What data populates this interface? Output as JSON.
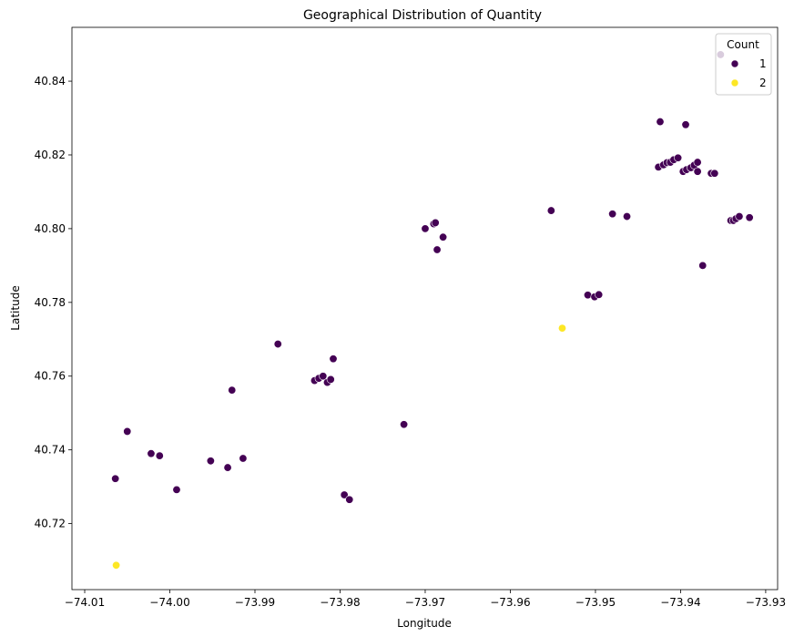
{
  "chart_data": {
    "type": "scatter",
    "title": "Geographical Distribution of Quantity",
    "xlabel": "Longitude",
    "ylabel": "Latitude",
    "xlim": [
      -74.0115,
      -73.9286
    ],
    "ylim": [
      40.7021,
      40.8546
    ],
    "x_ticks": [
      -74.01,
      -74.0,
      -73.99,
      -73.98,
      -73.97,
      -73.96,
      -73.95,
      -73.94,
      -73.93
    ],
    "x_tick_labels": [
      "−74.01",
      "−74.00",
      "−73.99",
      "−73.98",
      "−73.97",
      "−73.96",
      "−73.95",
      "−73.94",
      "−73.93"
    ],
    "y_ticks": [
      40.72,
      40.74,
      40.76,
      40.78,
      40.8,
      40.82,
      40.84
    ],
    "y_tick_labels": [
      "40.72",
      "40.74",
      "40.76",
      "40.78",
      "40.80",
      "40.82",
      "40.84"
    ],
    "grid": false,
    "legend": {
      "title": "Count",
      "placement": "top-right",
      "entries": [
        {
          "label": "1",
          "color": "#440154"
        },
        {
          "label": "2",
          "color": "#fde725"
        }
      ]
    },
    "series": [
      {
        "name": "1",
        "color": "#440154",
        "points": [
          [
            -74.0064,
            40.7322
          ],
          [
            -74.005,
            40.745
          ],
          [
            -74.0022,
            40.739
          ],
          [
            -74.0012,
            40.7384
          ],
          [
            -73.9992,
            40.7292
          ],
          [
            -73.9952,
            40.737
          ],
          [
            -73.9932,
            40.7352
          ],
          [
            -73.9927,
            40.7562
          ],
          [
            -73.9914,
            40.7377
          ],
          [
            -73.9873,
            40.7687
          ],
          [
            -73.983,
            40.7588
          ],
          [
            -73.9825,
            40.7594
          ],
          [
            -73.982,
            40.76
          ],
          [
            -73.9815,
            40.7583
          ],
          [
            -73.9811,
            40.7591
          ],
          [
            -73.9808,
            40.7647
          ],
          [
            -73.9795,
            40.7278
          ],
          [
            -73.9789,
            40.7265
          ],
          [
            -73.9725,
            40.7469
          ],
          [
            -73.97,
            40.8
          ],
          [
            -73.969,
            40.8013
          ],
          [
            -73.9688,
            40.8016
          ],
          [
            -73.9686,
            40.7943
          ],
          [
            -73.9679,
            40.7977
          ],
          [
            -73.9552,
            40.8049
          ],
          [
            -73.9509,
            40.782
          ],
          [
            -73.9501,
            40.7815
          ],
          [
            -73.9496,
            40.7821
          ],
          [
            -73.948,
            40.804
          ],
          [
            -73.9463,
            40.8033
          ],
          [
            -73.9426,
            40.8167
          ],
          [
            -73.9424,
            40.829
          ],
          [
            -73.942,
            40.8173
          ],
          [
            -73.9416,
            40.8179
          ],
          [
            -73.9412,
            40.818
          ],
          [
            -73.9408,
            40.8187
          ],
          [
            -73.9403,
            40.8192
          ],
          [
            -73.9397,
            40.8155
          ],
          [
            -73.9393,
            40.816
          ],
          [
            -73.9394,
            40.8282
          ],
          [
            -73.9388,
            40.8165
          ],
          [
            -73.9384,
            40.8172
          ],
          [
            -73.938,
            40.818
          ],
          [
            -73.938,
            40.8155
          ],
          [
            -73.9374,
            40.79
          ],
          [
            -73.9364,
            40.815
          ],
          [
            -73.936,
            40.815
          ],
          [
            -73.9353,
            40.8472
          ],
          [
            -73.9341,
            40.8022
          ],
          [
            -73.9338,
            40.8022
          ],
          [
            -73.9335,
            40.8027
          ],
          [
            -73.9331,
            40.8033
          ],
          [
            -73.9319,
            40.803
          ]
        ]
      },
      {
        "name": "2",
        "color": "#fde725",
        "points": [
          [
            -74.0063,
            40.7087
          ],
          [
            -73.9539,
            40.773
          ]
        ]
      }
    ]
  }
}
